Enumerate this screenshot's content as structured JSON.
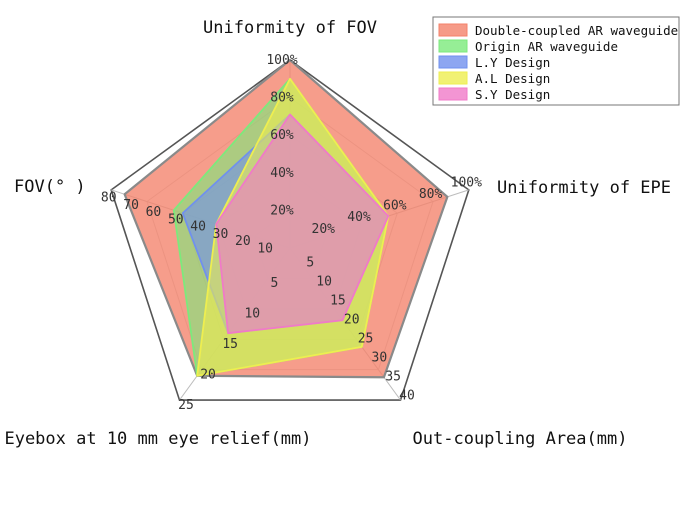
{
  "chart_data": {
    "type": "radar",
    "axes": [
      {
        "label": "Uniformity of FOV",
        "ticks": [
          "20%",
          "40%",
          "60%",
          "80%",
          "100%"
        ],
        "range": [
          0,
          100
        ]
      },
      {
        "label": "Uniformity of EPE",
        "ticks": [
          "20%",
          "40%",
          "60%",
          "80%",
          "100%"
        ],
        "range": [
          0,
          100
        ]
      },
      {
        "label": "Out-coupling Area(mm)",
        "ticks": [
          "5",
          "10",
          "15",
          "20",
          "25",
          "30",
          "35",
          "40"
        ],
        "range": [
          0,
          40
        ]
      },
      {
        "label": "Eyebox at 10 mm eye relief(mm)",
        "ticks": [
          "5",
          "10",
          "15",
          "20",
          "25"
        ],
        "range": [
          0,
          25
        ]
      },
      {
        "label": "FOV(° )",
        "ticks": [
          "10",
          "20",
          "30",
          "40",
          "50",
          "60",
          "70",
          "80"
        ],
        "range": [
          0,
          80
        ]
      }
    ],
    "series": [
      {
        "name": "Double-coupled AR waveguide",
        "color": "#f4826a",
        "values": [
          100,
          88,
          34,
          21,
          74
        ]
      },
      {
        "name": "Origin AR waveguide",
        "color": "#7cea7c",
        "values": [
          90,
          55,
          26,
          21,
          52
        ]
      },
      {
        "name": "L.Y Design",
        "color": "#7090ee",
        "values": [
          71,
          55,
          19,
          14,
          48
        ]
      },
      {
        "name": "A.L Design",
        "color": "#eeee50",
        "values": [
          90,
          55,
          26,
          21,
          33
        ]
      },
      {
        "name": "S.Y Design",
        "color": "#f07ac8",
        "values": [
          71,
          55,
          19,
          14,
          33
        ]
      }
    ],
    "legend_position": "top-right",
    "grid": true
  }
}
